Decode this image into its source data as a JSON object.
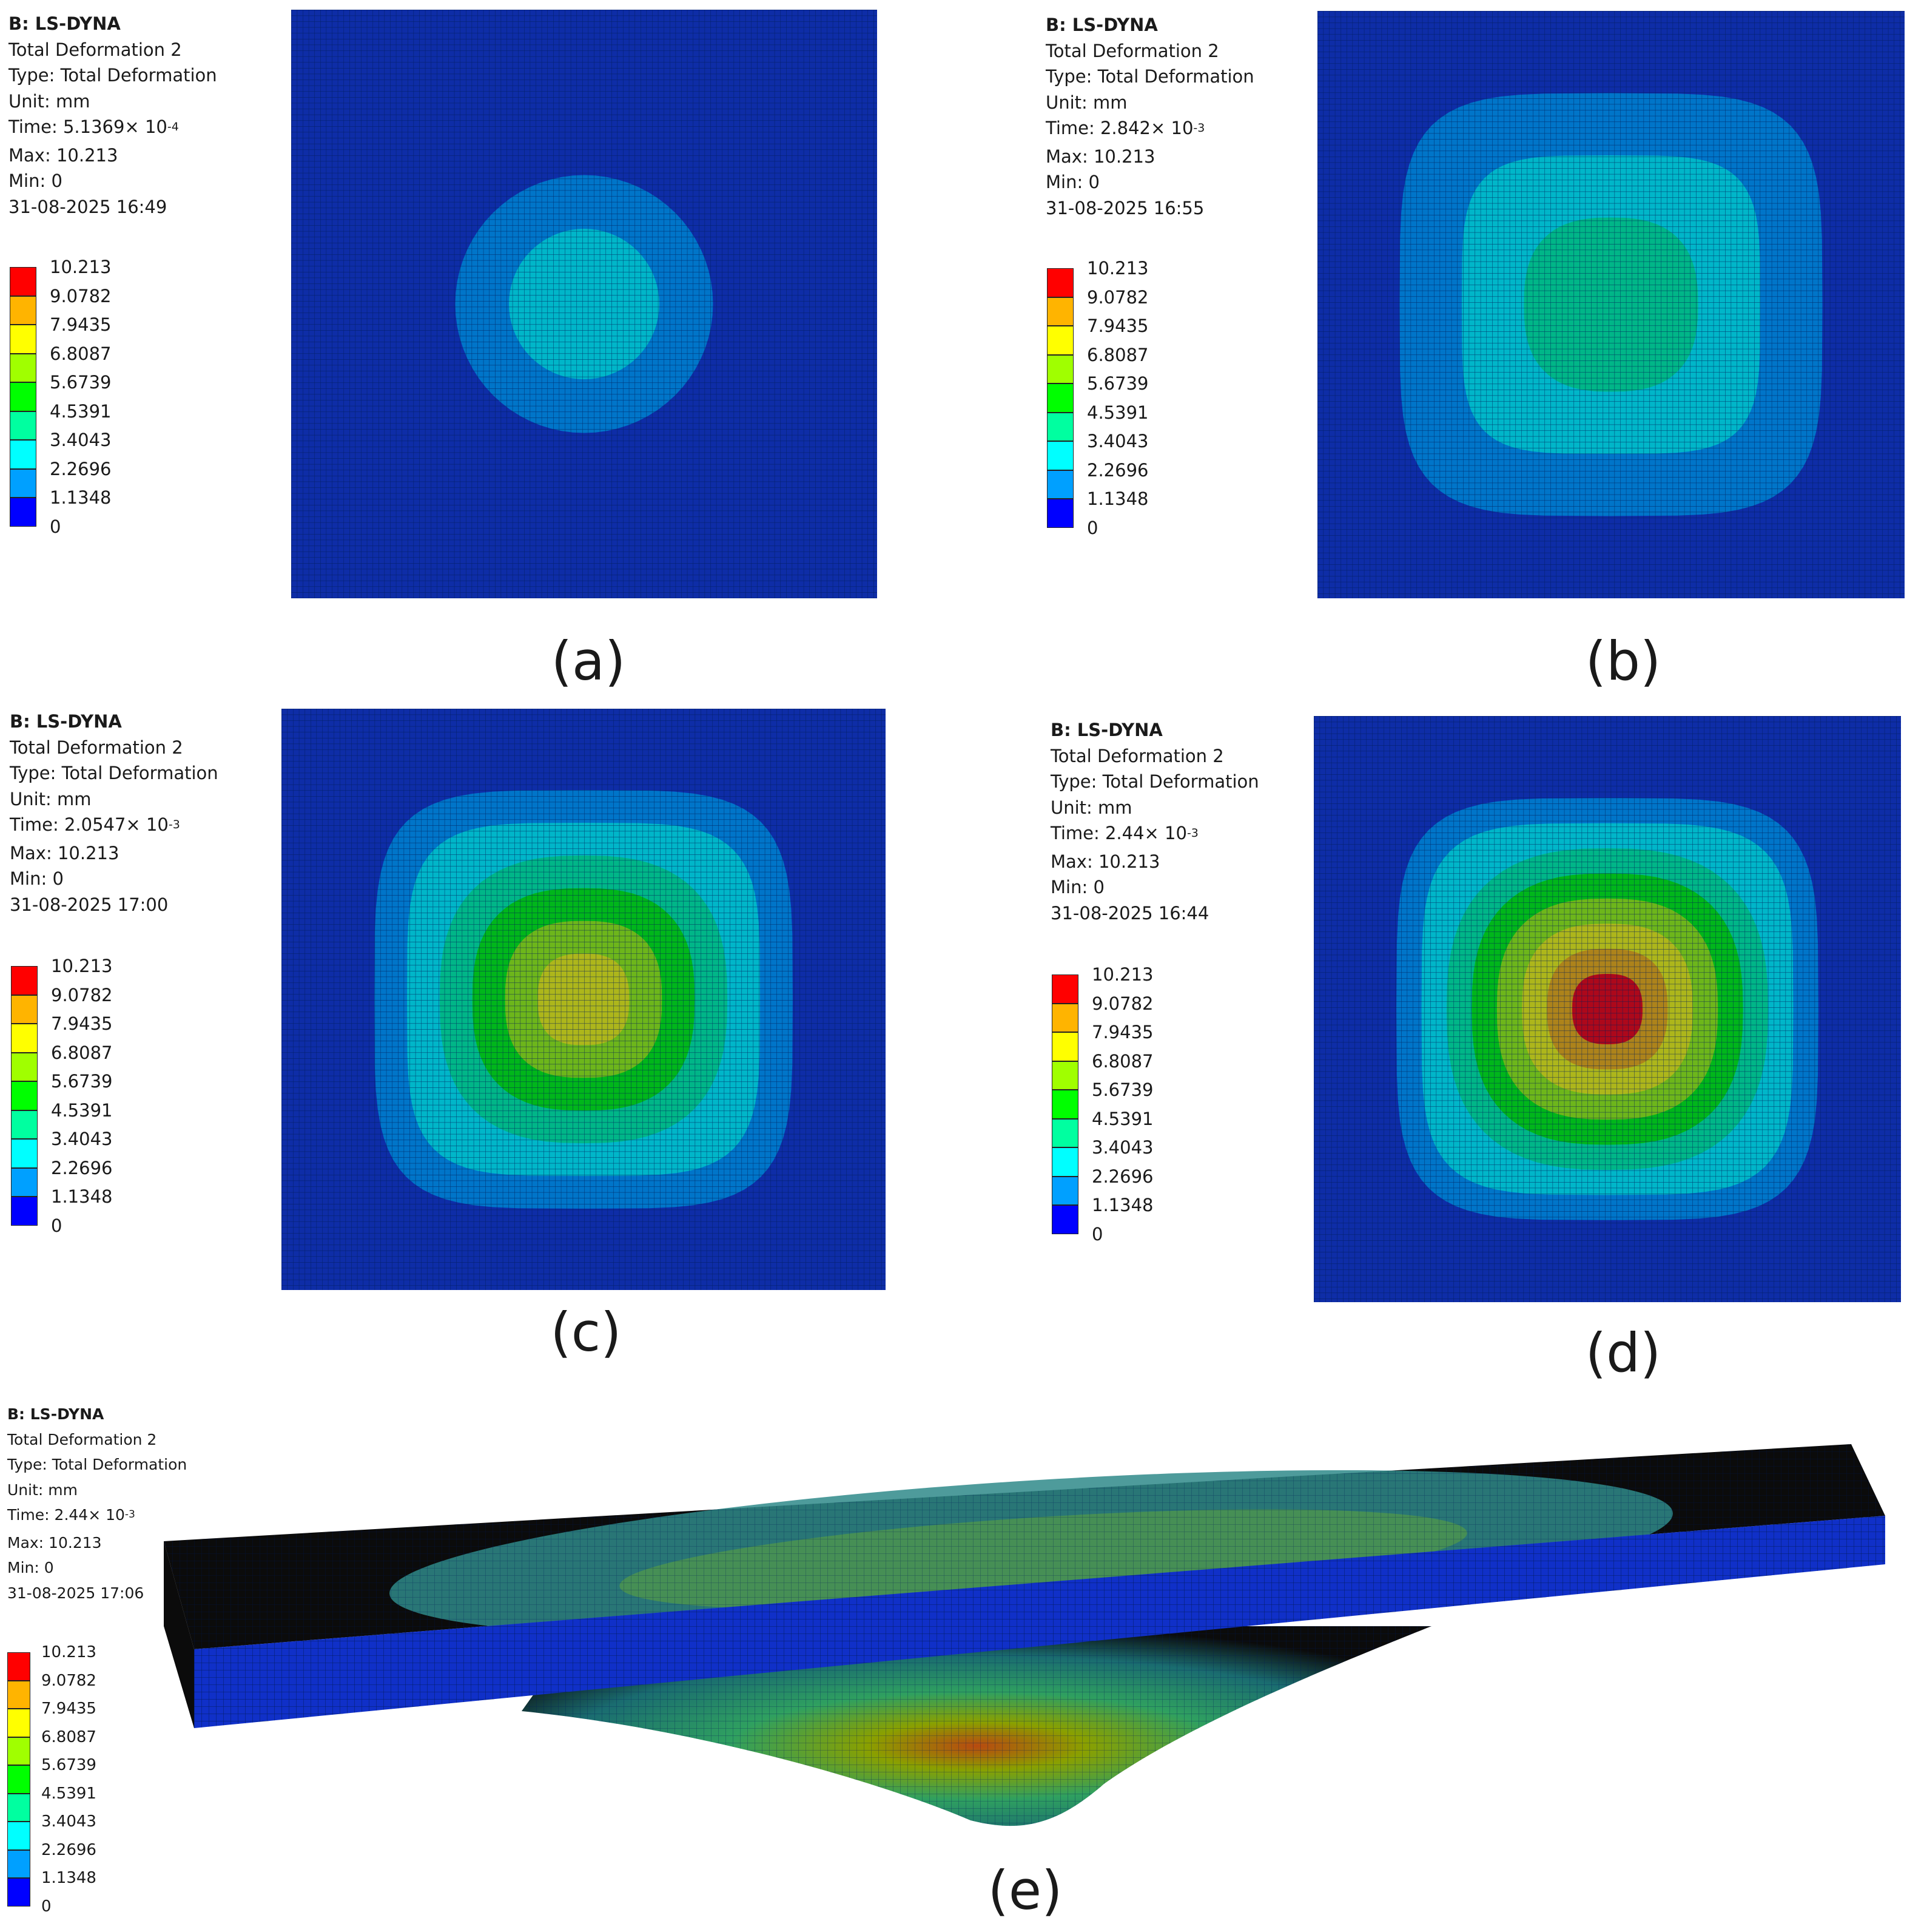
{
  "colors": {
    "scale": [
      "#0000ff",
      "#00a0ff",
      "#00ffff",
      "#00ffa0",
      "#00ff00",
      "#a0ff00",
      "#ffff00",
      "#ffb400",
      "#ff0000"
    ],
    "mesh_background": "#0f2fb0",
    "mesh_line": "#001a55",
    "side_face": "#0b0b0b"
  },
  "legend_values": [
    "10.213",
    "9.0782",
    "7.9435",
    "6.8087",
    "5.6739",
    "4.5391",
    "3.4043",
    "2.2696",
    "1.1348",
    "0"
  ],
  "panels": [
    {
      "label": "(a)",
      "header": "B: LS-DYNA",
      "result_name": "Total Deformation 2",
      "type": "Type: Total Deformation",
      "unit": "Unit: mm",
      "time_prefix": "Time: 5.1369× 10",
      "time_exp": "-4",
      "max": "Max: 10.213",
      "min": "Min: 0",
      "date": "31-08-2025 16:49",
      "view": "top",
      "contour_shape": "circle",
      "peak_level": 3.4
    },
    {
      "label": "(b)",
      "header": "B: LS-DYNA",
      "result_name": "Total Deformation 2",
      "type": "Type: Total Deformation",
      "unit": "Unit: mm",
      "time_prefix": "Time:  2.842× 10",
      "time_exp": "-3",
      "max": "Max: 10.213",
      "min": "Min: 0",
      "date": "31-08-2025 16:55",
      "view": "top",
      "contour_shape": "rounded-square",
      "peak_level": 4.5
    },
    {
      "label": "(c)",
      "header": "B: LS-DYNA",
      "result_name": "Total Deformation 2",
      "type": "Type: Total Deformation",
      "unit": "Unit: mm",
      "time_prefix": "Time: 2.0547× 10",
      "time_exp": "-3",
      "max": "Max: 10.213",
      "min": "Min: 0",
      "date": "31-08-2025 17:00",
      "view": "top",
      "contour_shape": "rounded-square",
      "peak_level": 7.9
    },
    {
      "label": "(d)",
      "header": "B: LS-DYNA",
      "result_name": "Total Deformation 2",
      "type": "Type: Total Deformation",
      "unit": "Unit: mm",
      "time_prefix": "Time: 2.44× 10",
      "time_exp": "-3",
      "max": "Max: 10.213",
      "min": "Min: 0",
      "date": "31-08-2025 16:44",
      "view": "top",
      "contour_shape": "rounded-square",
      "peak_level": 10.2
    },
    {
      "label": "(e)",
      "header": "B: LS-DYNA",
      "result_name": "Total Deformation 2",
      "type": "Type: Total Deformation",
      "unit": "Unit: mm",
      "time_prefix": "Time: 2.44× 10",
      "time_exp": "-3",
      "max": "Max: 10.213",
      "min": "Min: 0",
      "date": "31-08-2025 17:06",
      "view": "isometric",
      "contour_shape": "rounded-square",
      "peak_level": 10.2
    }
  ]
}
